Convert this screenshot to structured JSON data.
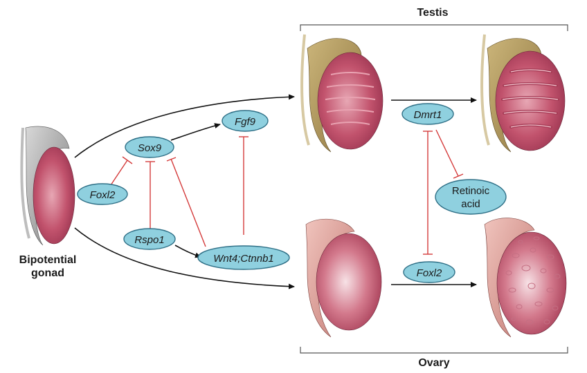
{
  "labels": {
    "testis": "Testis",
    "ovary": "Ovary",
    "bipotential_line1": "Bipotential",
    "bipotential_line2": "gonad"
  },
  "nodes": {
    "sox9": "Sox9",
    "fgf9": "Fgf9",
    "foxl2_left": "Foxl2",
    "rspo1": "Rspo1",
    "wnt4": "Wnt4;Ctnnb1",
    "dmrt1": "Dmrt1",
    "retinoic_line1": "Retinoic",
    "retinoic_line2": "acid",
    "foxl2_right": "Foxl2"
  },
  "colors": {
    "node_fill": "#8fd0df",
    "node_stroke": "#2e6f86",
    "activation": "#111111",
    "inhibition": "#d43a3a",
    "gonad_pink": "#c2536d",
    "testis_cap": "#b39552",
    "ovary_cap": "#e0a39c",
    "bipotential_cap": "#9a9a9a"
  }
}
